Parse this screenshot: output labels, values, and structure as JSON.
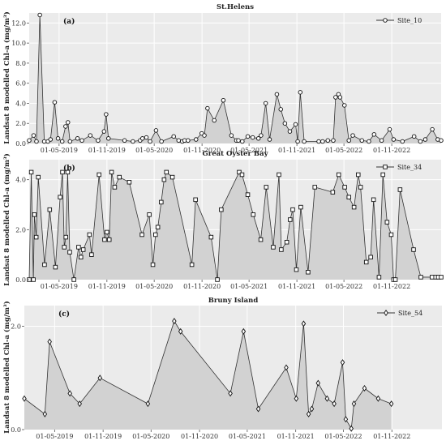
{
  "ylabel": "Landsat 8 modelled Chl-a (mg/m³)",
  "chart_data": [
    {
      "type": "area",
      "title": "St.Helens",
      "panel_label": "(a)",
      "legend": "Site_10",
      "marker": "circle",
      "ylabel": "Landsat 8 modelled Chl-a (mg/m³)",
      "ylim": [
        0,
        13
      ],
      "yticks": [
        "0.0",
        "2.0",
        "4.0",
        "6.0",
        "8.0",
        "10.0",
        "12.0"
      ],
      "ytick_values": [
        0,
        2,
        4,
        6,
        8,
        10,
        12
      ],
      "xlim": [
        "2019-01-06",
        "2023-05-10"
      ],
      "xticks": [
        "01-05-2019",
        "01-11-2019",
        "01-05-2020",
        "01-11-2020",
        "01-05-2021",
        "01-11-2021",
        "01-05-2022",
        "01-11-2022"
      ],
      "xtick_dates": [
        "2019-05-01",
        "2019-11-01",
        "2020-05-01",
        "2020-11-01",
        "2021-05-01",
        "2021-11-01",
        "2022-05-01",
        "2022-11-01"
      ],
      "grid": true,
      "legend_position": "top-right",
      "x": [
        "2019-01-06",
        "2019-01-23",
        "2019-02-03",
        "2019-02-16",
        "2019-03-05",
        "2019-03-19",
        "2019-03-29",
        "2019-04-14",
        "2019-04-27",
        "2019-05-13",
        "2019-05-26",
        "2019-06-04",
        "2019-06-12",
        "2019-07-11",
        "2019-07-28",
        "2019-08-29",
        "2019-09-28",
        "2019-10-21",
        "2019-10-29",
        "2019-11-07",
        "2020-01-08",
        "2020-02-09",
        "2020-03-08",
        "2020-03-17",
        "2020-04-01",
        "2020-04-15",
        "2020-05-08",
        "2020-05-29",
        "2020-07-15",
        "2020-08-03",
        "2020-08-17",
        "2020-08-26",
        "2020-09-08",
        "2020-10-09",
        "2020-10-31",
        "2020-11-10",
        "2020-11-22",
        "2020-12-18",
        "2021-01-22",
        "2021-02-22",
        "2021-03-13",
        "2021-03-21",
        "2021-04-05",
        "2021-04-26",
        "2021-05-15",
        "2021-06-06",
        "2021-06-16",
        "2021-07-04",
        "2021-07-19",
        "2021-08-16",
        "2021-08-31",
        "2021-09-16",
        "2021-10-05",
        "2021-10-27",
        "2021-11-04",
        "2021-11-14",
        "2021-11-29",
        "2022-01-24",
        "2022-02-08",
        "2022-02-28",
        "2022-03-21",
        "2022-03-30",
        "2022-04-10",
        "2022-04-16",
        "2022-05-03",
        "2022-05-20",
        "2022-06-04",
        "2022-07-09",
        "2022-08-05",
        "2022-08-25",
        "2022-09-23",
        "2022-10-24",
        "2022-11-08",
        "2022-12-12",
        "2023-01-26",
        "2023-02-19",
        "2023-03-10",
        "2023-04-06",
        "2023-04-27",
        "2023-05-10"
      ],
      "values": [
        0.3,
        0.8,
        0.2,
        12.8,
        0.2,
        0.2,
        0.4,
        4.1,
        0.5,
        0.2,
        1.7,
        2.1,
        0.2,
        0.5,
        0.3,
        0.8,
        0.3,
        1.2,
        2.9,
        0.5,
        0.3,
        0.2,
        0.3,
        0.5,
        0.6,
        0.2,
        1.3,
        0.2,
        0.7,
        0.3,
        0.2,
        0.3,
        0.3,
        0.4,
        1.0,
        0.8,
        3.5,
        2.3,
        4.3,
        0.8,
        0.3,
        0.3,
        0.2,
        0.7,
        0.6,
        0.5,
        0.8,
        4.0,
        0.4,
        4.9,
        3.4,
        2.0,
        1.2,
        1.9,
        0.2,
        5.1,
        0.2,
        0.2,
        0.2,
        0.3,
        0.3,
        4.6,
        4.9,
        4.6,
        3.8,
        0.3,
        0.8,
        0.3,
        0.2,
        0.9,
        0.3,
        1.4,
        0.4,
        0.2,
        0.7,
        0.2,
        0.4,
        1.4,
        0.4,
        0.3
      ]
    },
    {
      "type": "area",
      "title": "Great Oyster Bay",
      "panel_label": "(b)",
      "legend": "Site_34",
      "marker": "square",
      "ylabel": "Landsat 8 modelled Chl-a (mg/m³)",
      "ylim": [
        0,
        4.8
      ],
      "yticks": [
        "0.0",
        "2.0",
        "4.0"
      ],
      "ytick_values": [
        0,
        2,
        4
      ],
      "xlim": [
        "2019-01-06",
        "2023-05-10"
      ],
      "xticks": [
        "01-05-2019",
        "01-11-2019",
        "01-05-2020",
        "01-11-2020",
        "01-05-2021",
        "01-11-2021",
        "01-05-2022",
        "01-11-2022"
      ],
      "xtick_dates": [
        "2019-05-01",
        "2019-11-01",
        "2020-05-01",
        "2020-11-01",
        "2021-05-01",
        "2021-11-01",
        "2022-05-01",
        "2022-11-01"
      ],
      "grid": true,
      "legend_position": "top-right",
      "x": [
        "2019-01-06",
        "2019-01-14",
        "2019-01-22",
        "2019-01-26",
        "2019-02-02",
        "2019-02-10",
        "2019-03-06",
        "2019-03-26",
        "2019-04-17",
        "2019-05-05",
        "2019-05-14",
        "2019-05-21",
        "2019-05-27",
        "2019-06-03",
        "2019-06-11",
        "2019-06-27",
        "2019-07-15",
        "2019-07-24",
        "2019-08-02",
        "2019-08-26",
        "2019-09-03",
        "2019-10-02",
        "2019-10-23",
        "2019-11-01",
        "2019-11-10",
        "2019-11-19",
        "2019-12-01",
        "2019-12-19",
        "2020-01-26",
        "2020-03-15",
        "2020-04-12",
        "2020-04-26",
        "2020-05-06",
        "2020-05-15",
        "2020-05-28",
        "2020-06-08",
        "2020-06-17",
        "2020-07-10",
        "2020-09-23",
        "2020-10-07",
        "2020-12-06",
        "2020-12-30",
        "2021-01-14",
        "2021-03-24",
        "2021-04-04",
        "2021-04-26",
        "2021-05-17",
        "2021-06-15",
        "2021-07-06",
        "2021-08-02",
        "2021-08-24",
        "2021-09-02",
        "2021-09-23",
        "2021-10-06",
        "2021-10-16",
        "2021-10-30",
        "2021-11-16",
        "2021-12-14",
        "2022-01-09",
        "2022-03-19",
        "2022-04-11",
        "2022-05-04",
        "2022-05-20",
        "2022-06-09",
        "2022-06-25",
        "2022-07-04",
        "2022-07-26",
        "2022-08-12",
        "2022-08-23",
        "2022-09-13",
        "2022-09-28",
        "2022-10-14",
        "2022-10-30",
        "2022-11-08",
        "2022-11-15",
        "2022-12-03",
        "2023-01-24",
        "2023-02-21",
        "2023-04-05",
        "2023-04-19",
        "2023-04-29",
        "2023-05-10"
      ],
      "values": [
        0.0,
        4.3,
        0.0,
        2.6,
        1.7,
        4.1,
        0.6,
        2.8,
        0.5,
        3.3,
        4.3,
        1.3,
        1.7,
        4.3,
        1.1,
        0.0,
        1.3,
        0.9,
        1.2,
        1.8,
        1.0,
        4.2,
        1.6,
        1.9,
        1.6,
        4.3,
        3.7,
        4.1,
        3.9,
        1.8,
        2.6,
        0.6,
        1.8,
        2.1,
        3.1,
        4.0,
        4.3,
        4.1,
        0.6,
        3.2,
        1.7,
        0.0,
        2.8,
        4.3,
        4.2,
        3.4,
        2.6,
        1.6,
        3.7,
        1.3,
        4.2,
        1.2,
        1.5,
        2.4,
        2.8,
        0.4,
        2.9,
        0.3,
        3.7,
        3.5,
        4.2,
        3.7,
        3.3,
        2.9,
        4.2,
        3.7,
        0.7,
        0.9,
        3.2,
        0.1,
        4.2,
        2.3,
        1.8,
        0.0,
        0.0,
        3.6,
        1.2,
        0.1,
        0.1,
        0.1,
        0.1,
        0.1
      ]
    },
    {
      "type": "area",
      "title": "Bruny Island",
      "panel_label": "(c)",
      "legend": "Site_54",
      "marker": "diamond",
      "ylabel": "Landsat 8 modelled Chl-a (mg/m³)",
      "ylim": [
        0,
        2.4
      ],
      "yticks": [
        "0.0",
        "2.0"
      ],
      "ytick_values": [
        0,
        2
      ],
      "xlim": [
        "2019-01-06",
        "2023-05-10"
      ],
      "xticks": [
        "01-05-2019",
        "01-11-2019",
        "01-05-2020",
        "01-11-2020",
        "01-05-2021",
        "01-11-2021",
        "01-05-2022",
        "01-11-2022"
      ],
      "xtick_dates": [
        "2019-05-01",
        "2019-11-01",
        "2020-05-01",
        "2020-11-01",
        "2021-05-01",
        "2021-11-01",
        "2022-05-01",
        "2022-11-01"
      ],
      "grid": true,
      "legend_position": "top-right",
      "x": [
        "2019-01-06",
        "2019-03-25",
        "2019-04-12",
        "2019-06-28",
        "2019-08-04",
        "2019-10-20",
        "2020-04-19",
        "2020-07-28",
        "2020-08-21",
        "2021-02-26",
        "2021-04-17",
        "2021-06-12",
        "2021-09-26",
        "2021-11-03",
        "2021-12-01",
        "2021-12-20",
        "2022-01-01",
        "2022-01-25",
        "2022-02-28",
        "2022-03-27",
        "2022-04-28",
        "2022-05-10",
        "2022-05-31",
        "2022-06-10",
        "2022-07-20",
        "2022-09-10",
        "2022-10-30"
      ],
      "values": [
        0.6,
        0.3,
        1.7,
        0.7,
        0.5,
        1.0,
        0.5,
        2.1,
        1.9,
        0.7,
        1.9,
        0.4,
        1.2,
        0.6,
        2.05,
        0.3,
        0.4,
        0.9,
        0.6,
        0.5,
        1.3,
        0.2,
        0.02,
        0.5,
        0.8,
        0.6,
        0.5
      ]
    }
  ]
}
